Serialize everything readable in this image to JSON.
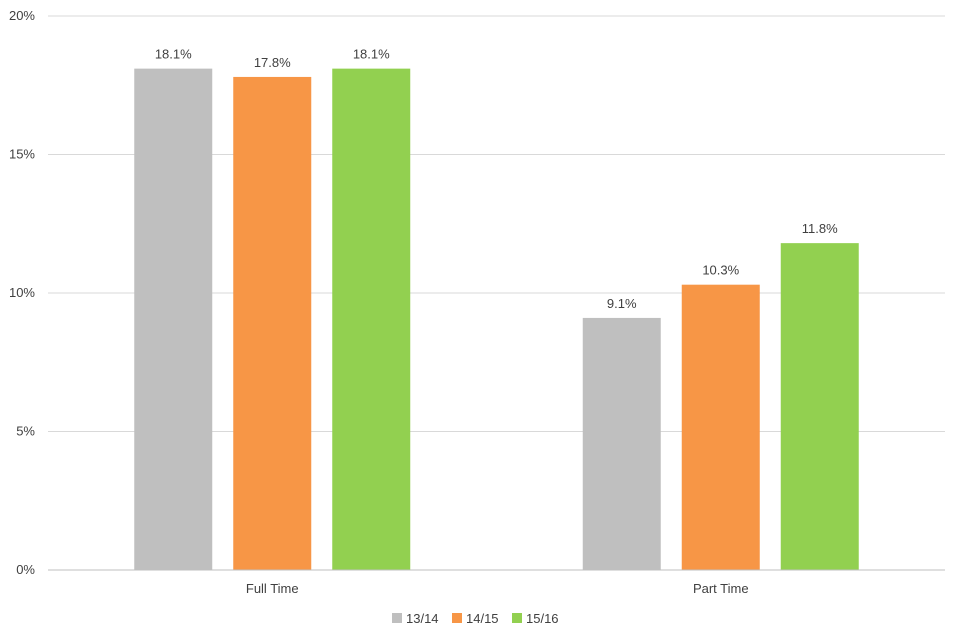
{
  "chart_data": {
    "type": "bar",
    "title": "",
    "xlabel": "",
    "ylabel": "",
    "categories": [
      "Full Time",
      "Part Time"
    ],
    "series": [
      {
        "name": "13/14",
        "values": [
          18.1,
          9.1
        ],
        "color": "#bfbfbf"
      },
      {
        "name": "14/15",
        "values": [
          17.8,
          10.3
        ],
        "color": "#f79646"
      },
      {
        "name": "15/16",
        "values": [
          18.1,
          11.8
        ],
        "color": "#92d050"
      }
    ],
    "data_labels": [
      [
        "18.1%",
        "9.1%"
      ],
      [
        "17.8%",
        "10.3%"
      ],
      [
        "18.1%",
        "11.8%"
      ]
    ],
    "ylim": [
      0,
      20
    ],
    "yticks": [
      0,
      5,
      10,
      15,
      20
    ],
    "ytick_labels": [
      "0%",
      "5%",
      "10%",
      "15%",
      "20%"
    ],
    "grid": true,
    "legend_position": "bottom"
  }
}
